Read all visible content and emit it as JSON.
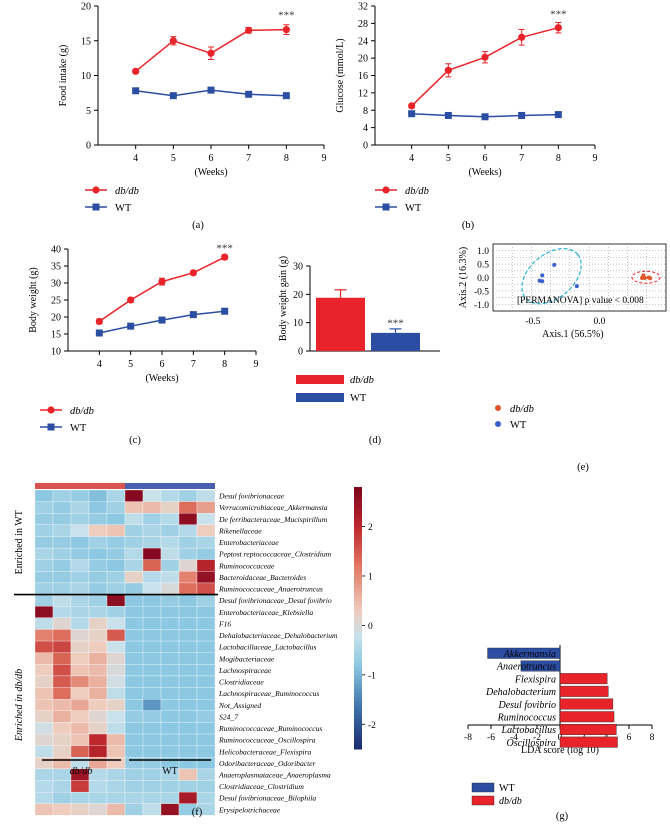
{
  "panel_letters": [
    "(a)",
    "(b)",
    "(c)",
    "(d)",
    "(e)",
    "(f)",
    "(g)"
  ],
  "colors": {
    "dbdb": "#e8242a",
    "wt": "#2b4ea2",
    "star": "#333333"
  },
  "chart_data": [
    {
      "id": "a",
      "type": "line",
      "xlabel": "(Weeks)",
      "ylabel": "Food intake (g)",
      "xlim": [
        3,
        9
      ],
      "ylim": [
        0,
        20
      ],
      "xticks": [
        "4",
        "5",
        "6",
        "7",
        "8",
        "9"
      ],
      "yticks": [
        "0",
        "5",
        "10",
        "15",
        "20"
      ],
      "x": [
        4,
        5,
        6,
        7,
        8
      ],
      "series": [
        {
          "name": "db/db",
          "values": [
            10.6,
            15.0,
            13.2,
            16.5,
            16.6
          ],
          "err": [
            0.3,
            0.6,
            0.9,
            0.4,
            0.7
          ]
        },
        {
          "name": "WT",
          "values": [
            7.8,
            7.1,
            7.9,
            7.3,
            7.1
          ],
          "err": [
            0.2,
            0.2,
            0.3,
            0.2,
            0.2
          ]
        }
      ],
      "annotation": {
        "text": "***",
        "x": 8,
        "y": 18.2
      }
    },
    {
      "id": "b",
      "type": "line",
      "xlabel": "(Weeks)",
      "ylabel": "Glucose (mmol/L)",
      "xlim": [
        3,
        9
      ],
      "ylim": [
        0,
        32
      ],
      "xticks": [
        "4",
        "5",
        "6",
        "7",
        "8",
        "9"
      ],
      "yticks": [
        "0",
        "4",
        "8",
        "12",
        "16",
        "20",
        "24",
        "28",
        "32"
      ],
      "x": [
        4,
        5,
        6,
        7,
        8
      ],
      "series": [
        {
          "name": "db/db",
          "values": [
            9.0,
            17.2,
            20.2,
            24.8,
            27.0
          ],
          "err": [
            0.4,
            1.5,
            1.3,
            1.8,
            1.2
          ]
        },
        {
          "name": "WT",
          "values": [
            7.2,
            6.8,
            6.5,
            6.8,
            7.0
          ],
          "err": [
            0.3,
            0.3,
            0.3,
            0.3,
            0.3
          ]
        }
      ],
      "annotation": {
        "text": "***",
        "x": 8,
        "y": 29.3
      }
    },
    {
      "id": "c",
      "type": "line",
      "xlabel": "(Weeks)",
      "ylabel": "Body weight (g)",
      "xlim": [
        3,
        9
      ],
      "ylim": [
        10,
        40
      ],
      "xticks": [
        "4",
        "5",
        "6",
        "7",
        "8",
        "9"
      ],
      "yticks": [
        "10",
        "15",
        "20",
        "25",
        "30",
        "35",
        "40"
      ],
      "x": [
        4,
        5,
        6,
        7,
        8
      ],
      "series": [
        {
          "name": "db/db",
          "values": [
            18.7,
            25.0,
            30.4,
            33.0,
            37.6
          ],
          "err": [
            0.7,
            0.7,
            1.0,
            0.6,
            0.7
          ]
        },
        {
          "name": "WT",
          "values": [
            15.3,
            17.3,
            19.1,
            20.7,
            21.7
          ],
          "err": [
            0.3,
            0.3,
            0.3,
            0.4,
            0.4
          ]
        }
      ],
      "annotation": {
        "text": "***",
        "x": 8,
        "y": 39.2
      }
    },
    {
      "id": "d",
      "type": "bar",
      "ylabel": "Body weight gain (g)",
      "ylim": [
        0,
        30
      ],
      "yticks": [
        "0",
        "10",
        "20",
        "30"
      ],
      "series": [
        {
          "name": "db/db",
          "values": [
            18.8
          ],
          "err": [
            2.8
          ]
        },
        {
          "name": "WT",
          "values": [
            6.4
          ],
          "err": [
            1.4
          ]
        }
      ],
      "annotation": {
        "text": "***",
        "y": 8.6
      }
    },
    {
      "id": "e",
      "type": "scatter",
      "xlabel": "Axis.1 (56.5%)",
      "ylabel": "Axis.2 (16.3%)",
      "xlim": [
        -0.8,
        0.5
      ],
      "ylim": [
        -1.25,
        1.25
      ],
      "xticks": [
        "-0.5",
        "0.0"
      ],
      "xtick_values": [
        -0.5,
        0.0
      ],
      "yticks": [
        "-1.0",
        "-0.5",
        "0.0",
        "0.5",
        "1.0"
      ],
      "ytick_values": [
        -1.0,
        -0.5,
        0.0,
        0.5,
        1.0
      ],
      "grid": true,
      "series": [
        {
          "name": "db/db",
          "points": [
            [
              0.33,
              0.08
            ],
            [
              0.32,
              -0.02
            ],
            [
              0.34,
              -0.02
            ],
            [
              0.37,
              0.0
            ],
            [
              0.38,
              -0.03
            ]
          ]
        },
        {
          "name": "WT",
          "points": [
            [
              -0.34,
              0.47
            ],
            [
              -0.43,
              0.08
            ],
            [
              -0.45,
              -0.12
            ],
            [
              -0.43,
              -0.14
            ],
            [
              -0.17,
              -0.32
            ]
          ]
        }
      ],
      "annotation": "[PERMANOVA]  p value < 0.008"
    },
    {
      "id": "f",
      "type": "heatmap",
      "row_labels": [
        "Desul fovibrionaceae",
        "Verrucomicrobiaceae_Akkermansia",
        "De ferribacteraceae_Mucispirillum",
        "Rikenellaceae",
        "Enterobacteriaceae",
        "Peptost reptococcaceae_Clostridium",
        "Ruminococcaceae",
        "Bacteroidaceae_Bacteroides",
        "Ruminococcaceae_Anaerotruncus",
        "Desul fovibrionaceae_Desul fovibrio",
        "Enterobacteriaceae_Klebsiella",
        "F16",
        "Dehalobacteriaceae_Dehalobacterium",
        "Lactobacillaceae_Lactobacillus",
        "Mogibacteriaceae",
        "Lachnospiraceae",
        "Clostridiaceae",
        "Lachnospiraceae_Ruminococcus",
        "Not_Assigned",
        "S24_7",
        "Ruminococcaceae_Ruminococcus",
        "Ruminococcaceae_Oscillospira",
        "Helicobacteraceae_Flexispira",
        "Odoribacteraceae_Odoribacter",
        "Anaeroplasmataceae_Anaeroplasma",
        "Clostridiaceae_Clostridium",
        "Desul fovibrionaceae_Bilophila",
        "Erysipelotrichaceae"
      ],
      "group_labels": {
        "top": "Enriched in WT",
        "bottom": "Enriched in db/db"
      },
      "column_groups": [
        "db/db",
        "WT"
      ],
      "scale": {
        "min": -2.5,
        "max": 2.8,
        "ticks": [
          "2",
          "1",
          "0",
          "-1",
          "-2"
        ],
        "tick_values": [
          2,
          1,
          0,
          -1,
          -2
        ]
      },
      "values": [
        [
          -0.8,
          -0.6,
          -0.7,
          -0.9,
          -0.5,
          2.7,
          -0.2,
          -0.4,
          -0.6,
          -0.3
        ],
        [
          -0.6,
          -0.7,
          -0.5,
          -0.8,
          -0.6,
          0.4,
          0.5,
          0.2,
          1.3,
          0.8
        ],
        [
          -0.7,
          -0.7,
          -0.6,
          -0.7,
          -0.8,
          -0.3,
          -0.6,
          -0.4,
          2.6,
          -0.2
        ],
        [
          -0.6,
          -0.5,
          -0.2,
          0.3,
          0.4,
          -0.6,
          -0.5,
          -0.6,
          -0.4,
          0.3
        ],
        [
          -0.7,
          -0.7,
          -0.8,
          -0.6,
          -0.7,
          -0.6,
          -0.5,
          -0.4,
          -0.6,
          -0.5
        ],
        [
          -0.5,
          -0.6,
          -0.7,
          -0.8,
          -0.7,
          -0.4,
          2.7,
          -0.3,
          -0.6,
          -0.7
        ],
        [
          -0.6,
          -0.7,
          -0.4,
          -0.7,
          -0.8,
          -0.5,
          1.4,
          -0.6,
          0.1,
          2.1
        ],
        [
          -0.7,
          -0.7,
          -0.6,
          -0.7,
          -0.6,
          0.2,
          -0.4,
          -0.3,
          1.1,
          2.5
        ],
        [
          -0.6,
          -0.6,
          -0.5,
          -0.7,
          -0.6,
          -0.7,
          -0.2,
          0.0,
          1.3,
          1.6
        ],
        [
          -0.6,
          -0.3,
          -0.5,
          -0.6,
          2.6,
          -0.8,
          -0.8,
          -0.7,
          -0.8,
          -0.6
        ],
        [
          2.6,
          -0.4,
          -0.5,
          -0.5,
          -0.6,
          -0.8,
          -0.8,
          -0.8,
          -0.8,
          -0.8
        ],
        [
          -0.3,
          0.1,
          -0.4,
          0.2,
          -0.2,
          -0.8,
          -0.8,
          -0.8,
          -0.8,
          -0.8
        ],
        [
          1.1,
          1.3,
          0.1,
          0.2,
          1.5,
          -0.8,
          -0.8,
          -0.8,
          -0.8,
          -0.8
        ],
        [
          1.6,
          1.7,
          0.2,
          0.3,
          -0.2,
          -0.8,
          -0.8,
          -0.8,
          -0.8,
          -0.8
        ],
        [
          0.5,
          1.4,
          0.3,
          0.6,
          0.1,
          -0.8,
          -0.8,
          -0.8,
          -0.8,
          -0.8
        ],
        [
          0.3,
          1.6,
          0.4,
          0.5,
          0.0,
          -0.8,
          -0.8,
          -0.8,
          -0.8,
          -0.8
        ],
        [
          0.2,
          1.5,
          1.0,
          0.6,
          -0.1,
          -0.8,
          -0.8,
          -0.8,
          -0.8,
          -0.8
        ],
        [
          0.4,
          1.3,
          0.3,
          0.6,
          -0.3,
          -0.8,
          -0.8,
          -0.8,
          -0.8,
          -0.8
        ],
        [
          0.4,
          0.5,
          0.7,
          0.3,
          0.2,
          -0.8,
          -1.3,
          -0.8,
          -0.8,
          -0.8
        ],
        [
          0.2,
          0.6,
          0.3,
          0.1,
          -0.2,
          -0.7,
          -0.7,
          -0.8,
          -0.8,
          -0.7
        ],
        [
          -0.1,
          0.3,
          0.5,
          0.2,
          -0.3,
          -0.8,
          -0.8,
          -0.8,
          -0.8,
          -0.8
        ],
        [
          0.1,
          0.2,
          0.4,
          2.0,
          0.5,
          -0.8,
          -0.8,
          -0.8,
          -0.8,
          -0.8
        ],
        [
          -0.3,
          0.2,
          1.4,
          2.1,
          0.4,
          -0.8,
          -0.8,
          -0.8,
          -0.8,
          -0.8
        ],
        [
          0.2,
          0.5,
          -0.3,
          0.7,
          0.3,
          -0.7,
          -0.7,
          -0.8,
          -0.8,
          -0.8
        ],
        [
          -0.5,
          -0.5,
          2.4,
          -0.4,
          -0.5,
          -0.6,
          -0.6,
          -0.5,
          0.4,
          -0.5
        ],
        [
          -0.4,
          -0.5,
          1.8,
          -0.4,
          -0.5,
          -0.6,
          -0.6,
          -0.6,
          -0.6,
          -0.6
        ],
        [
          -0.4,
          -0.6,
          -0.5,
          -0.5,
          -0.5,
          -0.5,
          -0.5,
          -0.5,
          2.3,
          -0.5
        ],
        [
          0.4,
          0.3,
          0.2,
          0.1,
          0.5,
          -0.6,
          -0.3,
          2.5,
          -0.7,
          -0.5
        ]
      ]
    },
    {
      "id": "g",
      "type": "bar",
      "orientation": "horizontal",
      "xlabel": "LDA score (log 10)",
      "xlim": [
        -8,
        8
      ],
      "xticks": [
        "-8",
        "-6",
        "-4",
        "-2",
        "0",
        "2",
        "4",
        "6",
        "8"
      ],
      "categories": [
        "Akkermansia",
        "Anaerotruncus",
        "Flexispira",
        "Dehalobacterium",
        "Desul fovibrio",
        "Ruminococcus",
        "Lactobacillus",
        "Oscillospira"
      ],
      "values": [
        -6.3,
        -3.4,
        4.1,
        4.2,
        4.6,
        4.7,
        4.9,
        5.0
      ],
      "groups": [
        "WT",
        "WT",
        "db/db",
        "db/db",
        "db/db",
        "db/db",
        "db/db",
        "db/db"
      ],
      "legend": [
        "WT",
        "db/db"
      ]
    }
  ]
}
